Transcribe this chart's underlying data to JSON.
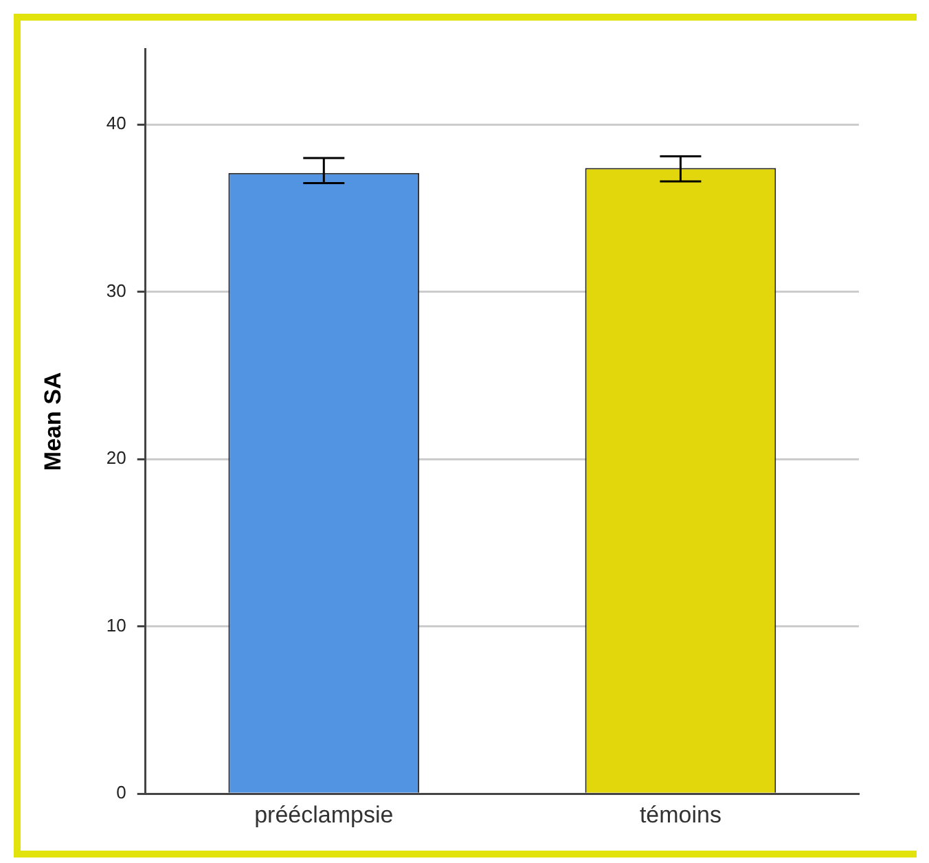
{
  "chart_data": {
    "type": "bar",
    "ylabel": "Mean SA",
    "categories": [
      "prééclampsie",
      "témoins"
    ],
    "values": [
      37.1,
      37.4
    ],
    "colors": [
      "#5294e2",
      "#e2d60c"
    ],
    "errors": [
      [
        36.5,
        38.0
      ],
      [
        36.6,
        38.1
      ]
    ],
    "ylim": [
      0,
      44.5
    ],
    "yticks": [
      0,
      10,
      20,
      30,
      40
    ],
    "grid": "y",
    "legend": false
  }
}
